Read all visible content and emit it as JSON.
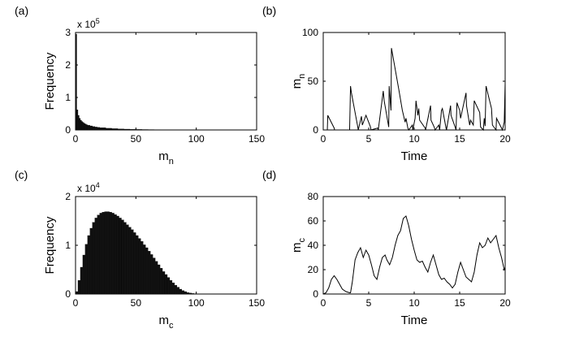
{
  "chart_data": [
    {
      "panel": "(a)",
      "type": "bar",
      "title": "",
      "xlabel": "m",
      "xlabel_sub": "n",
      "ylabel": "Frequency",
      "multiplier": "x 10",
      "multiplier_exp": "5",
      "xlim": [
        0,
        150
      ],
      "ylim": [
        0,
        3
      ],
      "xticks": [
        0,
        50,
        100,
        150
      ],
      "yticks": [
        0,
        1,
        2,
        3
      ],
      "grid": false,
      "x": [
        0,
        1,
        2,
        3,
        4,
        5,
        6,
        7,
        8,
        9,
        10,
        12,
        14,
        16,
        18,
        20,
        25,
        30,
        35,
        40,
        45,
        50,
        55,
        60,
        65,
        70,
        75,
        80,
        90,
        100,
        110,
        120
      ],
      "values": [
        2.95,
        0.62,
        0.45,
        0.36,
        0.3,
        0.26,
        0.23,
        0.2,
        0.18,
        0.16,
        0.145,
        0.125,
        0.105,
        0.09,
        0.08,
        0.07,
        0.052,
        0.04,
        0.031,
        0.025,
        0.02,
        0.016,
        0.013,
        0.011,
        0.009,
        0.007,
        0.006,
        0.005,
        0.003,
        0.002,
        0.001,
        0.0005
      ]
    },
    {
      "panel": "(b)",
      "type": "line",
      "title": "",
      "xlabel": "Time",
      "ylabel": "m",
      "ylabel_sub": "n",
      "xlim": [
        0,
        20
      ],
      "ylim": [
        0,
        100
      ],
      "xticks": [
        0,
        5,
        10,
        15,
        20
      ],
      "yticks": [
        0,
        50,
        100
      ],
      "grid": false,
      "x": [
        0,
        0.45,
        0.5,
        1.2,
        1.25,
        2.9,
        3.0,
        3.1,
        3.8,
        3.85,
        4.2,
        4.3,
        4.7,
        5.2,
        5.25,
        6.0,
        6.05,
        6.6,
        6.7,
        7.2,
        7.25,
        7.45,
        7.5,
        8.3,
        8.7,
        9.0,
        9.1,
        9.3,
        9.4,
        9.8,
        9.85,
        10.1,
        10.2,
        10.4,
        10.5,
        10.6,
        11.2,
        11.25,
        11.8,
        11.85,
        12.2,
        12.3,
        12.7,
        12.8,
        13.0,
        13.1,
        13.5,
        13.55,
        14.0,
        14.05,
        14.5,
        14.6,
        14.7,
        15.0,
        15.1,
        15.7,
        15.75,
        16.1,
        16.2,
        16.5,
        16.6,
        17.2,
        17.3,
        17.6,
        17.7,
        17.8,
        17.9,
        18.5,
        18.6,
        19.0,
        19.05,
        19.6,
        19.7,
        19.9,
        20.0
      ],
      "y": [
        0,
        0,
        15,
        2,
        0,
        0,
        45,
        38,
        3,
        0,
        14,
        5,
        15,
        3,
        0,
        2,
        0,
        40,
        30,
        3,
        45,
        20,
        84,
        42,
        20,
        8,
        12,
        2,
        0,
        5,
        0,
        12,
        30,
        15,
        22,
        10,
        2,
        0,
        25,
        10,
        3,
        0,
        5,
        0,
        20,
        22,
        2,
        0,
        25,
        15,
        3,
        0,
        28,
        20,
        12,
        38,
        25,
        5,
        10,
        5,
        30,
        18,
        3,
        0,
        12,
        4,
        45,
        22,
        5,
        0,
        12,
        2,
        0,
        8,
        48
      ]
    },
    {
      "panel": "(c)",
      "type": "bar",
      "title": "",
      "xlabel": "m",
      "xlabel_sub": "c",
      "ylabel": "Frequency",
      "multiplier": "x 10",
      "multiplier_exp": "4",
      "xlim": [
        0,
        150
      ],
      "ylim": [
        0,
        2
      ],
      "xticks": [
        0,
        50,
        100,
        150
      ],
      "yticks": [
        0,
        1,
        2
      ],
      "grid": false,
      "x": [
        0,
        2,
        4,
        6,
        8,
        10,
        12,
        14,
        16,
        18,
        20,
        22,
        24,
        26,
        28,
        30,
        32,
        34,
        36,
        38,
        40,
        42,
        44,
        46,
        48,
        50,
        52,
        54,
        56,
        58,
        60,
        62,
        64,
        66,
        68,
        70,
        72,
        74,
        76,
        78,
        80,
        82,
        84,
        86,
        88,
        90,
        92,
        94,
        96,
        98,
        100,
        102,
        104,
        106,
        108,
        110,
        112,
        114,
        116,
        118,
        120
      ],
      "values": [
        0.05,
        0.28,
        0.55,
        0.8,
        1.02,
        1.2,
        1.35,
        1.47,
        1.56,
        1.62,
        1.66,
        1.68,
        1.69,
        1.69,
        1.68,
        1.66,
        1.63,
        1.6,
        1.56,
        1.52,
        1.47,
        1.42,
        1.37,
        1.32,
        1.26,
        1.2,
        1.14,
        1.08,
        1.01,
        0.95,
        0.88,
        0.81,
        0.74,
        0.67,
        0.6,
        0.53,
        0.46,
        0.4,
        0.34,
        0.28,
        0.23,
        0.18,
        0.14,
        0.1,
        0.07,
        0.05,
        0.03,
        0.02,
        0.012,
        0.007,
        0.004,
        0.002,
        0.001,
        0.0005,
        0.0003,
        0.0002,
        0.0001,
        0,
        0,
        0,
        0
      ]
    },
    {
      "panel": "(d)",
      "type": "line",
      "title": "",
      "xlabel": "Time",
      "ylabel": "m",
      "ylabel_sub": "c",
      "xlim": [
        0,
        20
      ],
      "ylim": [
        0,
        80
      ],
      "xticks": [
        0,
        5,
        10,
        15,
        20
      ],
      "yticks": [
        0,
        20,
        40,
        60,
        80
      ],
      "grid": false,
      "x": [
        0,
        0.3,
        0.6,
        0.9,
        1.2,
        1.5,
        1.8,
        2.1,
        2.5,
        2.9,
        3.0,
        3.2,
        3.5,
        3.8,
        4.1,
        4.4,
        4.7,
        5.0,
        5.3,
        5.6,
        5.9,
        6.2,
        6.5,
        6.8,
        7.0,
        7.3,
        7.6,
        7.9,
        8.2,
        8.5,
        8.8,
        9.1,
        9.4,
        9.7,
        10.0,
        10.3,
        10.6,
        10.9,
        11.2,
        11.5,
        11.8,
        12.1,
        12.4,
        12.7,
        13.0,
        13.3,
        13.6,
        13.9,
        14.2,
        14.5,
        14.8,
        15.1,
        15.4,
        15.7,
        16.0,
        16.3,
        16.6,
        16.9,
        17.2,
        17.5,
        17.8,
        18.1,
        18.4,
        18.7,
        19.0,
        19.3,
        19.6,
        19.9,
        20.0
      ],
      "y": [
        0,
        1,
        5,
        12,
        15,
        12,
        8,
        4,
        2,
        1,
        1,
        10,
        28,
        34,
        38,
        30,
        36,
        32,
        24,
        15,
        12,
        22,
        30,
        32,
        28,
        24,
        30,
        40,
        48,
        52,
        62,
        64,
        56,
        45,
        36,
        28,
        26,
        27,
        22,
        18,
        26,
        32,
        24,
        16,
        12,
        13,
        10,
        8,
        5,
        8,
        18,
        26,
        20,
        14,
        12,
        10,
        18,
        32,
        42,
        38,
        40,
        46,
        42,
        45,
        48,
        38,
        30,
        20,
        22
      ]
    }
  ]
}
